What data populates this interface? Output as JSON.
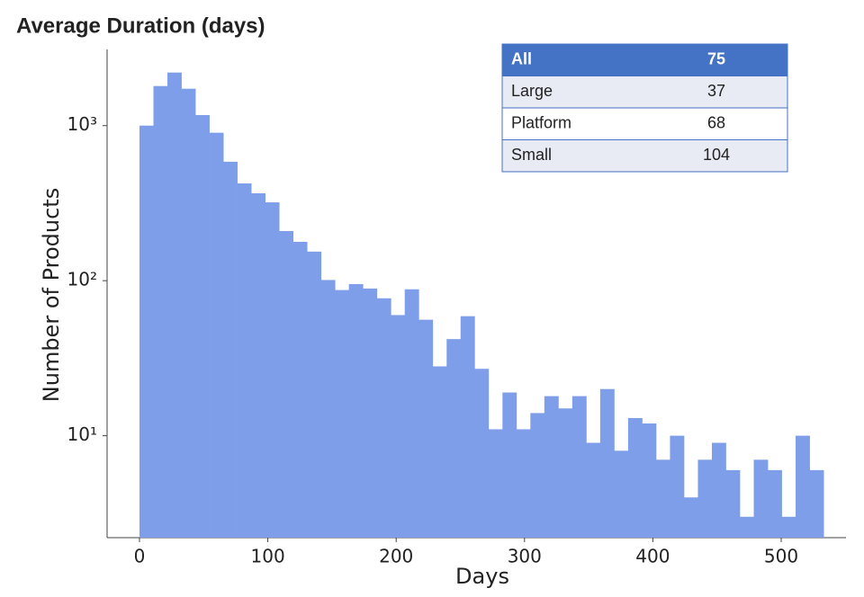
{
  "chart_data": {
    "type": "histogram",
    "title": "Average Duration (days)",
    "x_label": "Days",
    "y_label": "Number of Products",
    "color": "#7f9eea",
    "bins": [
      0,
      10.88,
      21.76,
      32.63,
      43.51,
      54.39,
      65.27,
      76.14,
      87.02,
      97.9,
      108.78,
      119.65,
      130.53,
      141.41,
      152.29,
      163.16,
      174.04,
      184.92,
      195.8,
      206.67,
      217.55,
      228.43,
      239.31,
      250.18,
      261.06,
      271.94,
      282.82,
      293.69,
      304.57,
      315.45,
      326.33,
      337.2,
      348.08,
      358.96,
      369.84,
      380.71,
      391.59,
      402.47,
      413.35,
      424.22,
      435.1,
      445.98,
      456.86,
      467.73,
      478.61,
      489.49,
      500.37,
      511.24,
      522.12,
      533
    ],
    "counts": [
      1000,
      1800,
      2200,
      1730,
      1170,
      900,
      585,
      424,
      366,
      320,
      209,
      178,
      154,
      101,
      87,
      95,
      89,
      77,
      60,
      88,
      56,
      28,
      42,
      59,
      27,
      11,
      19,
      11,
      14,
      18,
      15,
      18,
      9,
      20,
      8,
      13,
      12,
      7,
      10,
      4,
      7,
      9,
      6,
      3,
      7,
      6,
      3,
      10,
      6
    ],
    "xlim": [
      0,
      533
    ],
    "xticks": [
      0,
      100,
      200,
      300,
      400,
      500
    ],
    "log_y": true,
    "ylim": [
      2.2,
      3100
    ],
    "yticks": [
      {
        "value": 10,
        "label": "10¹"
      },
      {
        "value": 100,
        "label": "10²"
      },
      {
        "value": 1000,
        "label": "10³"
      }
    ]
  },
  "table": {
    "rows": [
      [
        "All",
        "75"
      ],
      [
        "Large",
        "37"
      ],
      [
        "Platform",
        "68"
      ],
      [
        "Small",
        "104"
      ]
    ]
  }
}
